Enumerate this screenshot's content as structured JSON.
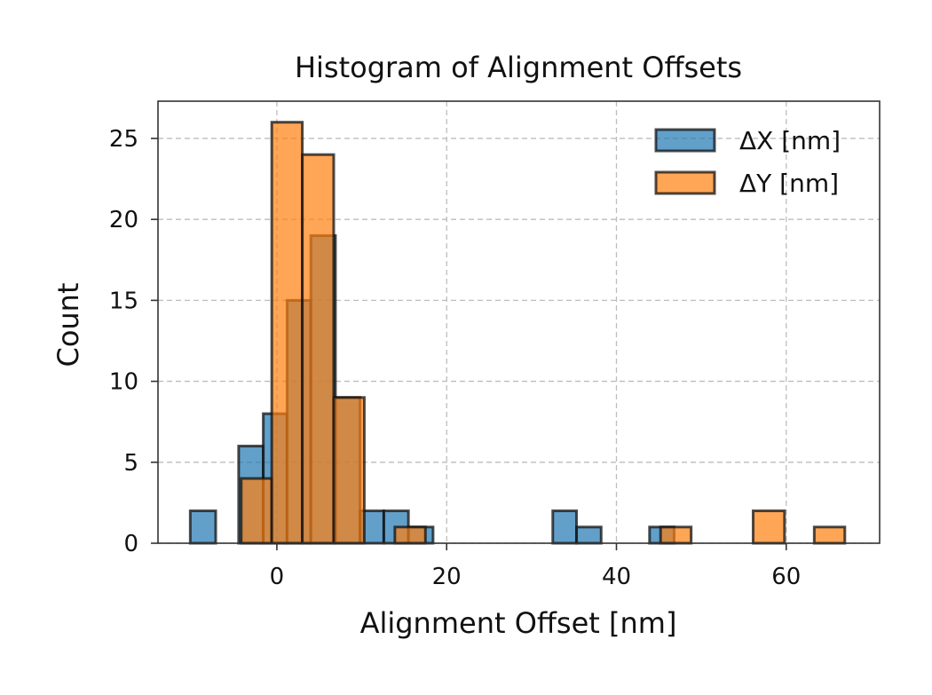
{
  "chart_data": {
    "type": "bar",
    "title": "Histogram of Alignment Offsets",
    "xlabel": "Alignment Offset [nm]",
    "ylabel": "Count",
    "xlim": [
      -14,
      71
    ],
    "ylim": [
      0,
      27.3
    ],
    "xticks": [
      0,
      20,
      40,
      60
    ],
    "yticks": [
      0,
      5,
      10,
      15,
      20,
      25
    ],
    "grid": true,
    "legend_position": "top-right",
    "series": [
      {
        "name": "ΔX [nm]",
        "color": "#1f77b4",
        "bins": [
          {
            "x0": -10.2,
            "x1": -7.2,
            "count": 2
          },
          {
            "x0": -4.5,
            "x1": -1.6,
            "count": 6
          },
          {
            "x0": -1.6,
            "x1": 1.2,
            "count": 8
          },
          {
            "x0": 1.2,
            "x1": 4.0,
            "count": 15
          },
          {
            "x0": 4.0,
            "x1": 6.9,
            "count": 19
          },
          {
            "x0": 6.9,
            "x1": 9.8,
            "count": 9
          },
          {
            "x0": 9.8,
            "x1": 12.6,
            "count": 2
          },
          {
            "x0": 12.6,
            "x1": 15.5,
            "count": 2
          },
          {
            "x0": 15.5,
            "x1": 18.4,
            "count": 1
          },
          {
            "x0": 32.5,
            "x1": 35.3,
            "count": 2
          },
          {
            "x0": 35.3,
            "x1": 38.2,
            "count": 1
          },
          {
            "x0": 43.9,
            "x1": 46.8,
            "count": 1
          }
        ]
      },
      {
        "name": "ΔY [nm]",
        "color": "#ff7f0e",
        "bins": [
          {
            "x0": -4.2,
            "x1": -0.6,
            "count": 4
          },
          {
            "x0": -0.6,
            "x1": 3.0,
            "count": 26
          },
          {
            "x0": 3.0,
            "x1": 6.7,
            "count": 24
          },
          {
            "x0": 6.7,
            "x1": 10.3,
            "count": 9
          },
          {
            "x0": 13.9,
            "x1": 17.5,
            "count": 1
          },
          {
            "x0": 45.2,
            "x1": 48.8,
            "count": 1
          },
          {
            "x0": 56.1,
            "x1": 59.8,
            "count": 2
          },
          {
            "x0": 63.3,
            "x1": 66.9,
            "count": 1
          }
        ]
      }
    ]
  }
}
